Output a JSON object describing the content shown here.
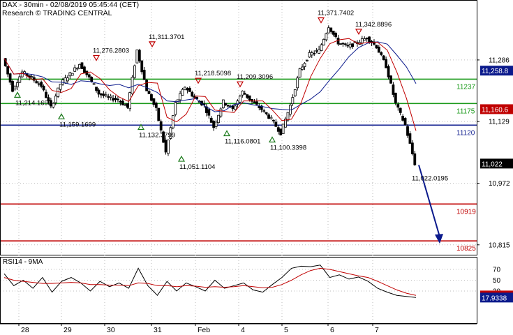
{
  "header": {
    "line1": "DAX - 30min - 02/08/2019 05:45:44 (CET)",
    "line2": "Research © TRADING CENTRAL"
  },
  "chart_data": [
    {
      "type": "candlestick",
      "title": "DAX - 30min - 02/08/2019 05:45:44 (CET)",
      "subtitle": "Research © TRADING CENTRAL",
      "ylim": [
        10800,
        11400
      ],
      "y_ticks": [
        {
          "value": 11286,
          "label": "11,286"
        },
        {
          "value": 11129,
          "label": "11,129"
        },
        {
          "value": 10972,
          "label": "10,972"
        },
        {
          "value": 10815,
          "label": "10,815"
        }
      ],
      "current_price": {
        "value": 11022,
        "label": "11,022"
      },
      "moving_average_labels": [
        {
          "value": 11258.8,
          "label": "11,258.8",
          "color": "#0b1a8c"
        },
        {
          "value": 11160.6,
          "label": "11,160.6",
          "color": "#c00000"
        }
      ],
      "levels": [
        {
          "value": 11237,
          "label": "11237",
          "color": "#1a9a1a"
        },
        {
          "value": 11175,
          "label": "11175",
          "color": "#1a9a1a"
        },
        {
          "value": 11120,
          "label": "11120",
          "color": "#0b1a8c"
        },
        {
          "value": 10919,
          "label": "10919",
          "color": "#c00000"
        },
        {
          "value": 10825,
          "label": "10825",
          "color": "#c00000"
        }
      ],
      "pivot_annotations": [
        {
          "label": "11,276.2803",
          "kind": "high",
          "value": 11276
        },
        {
          "label": "11,311.3701",
          "kind": "high",
          "value": 11311
        },
        {
          "label": "11,218.5098",
          "kind": "high",
          "value": 11218
        },
        {
          "label": "11,209.3096",
          "kind": "high",
          "value": 11209
        },
        {
          "label": "11,371.7402",
          "kind": "high",
          "value": 11372
        },
        {
          "label": "11,342.8896",
          "kind": "high",
          "value": 11343
        },
        {
          "label": "11,214.1699",
          "kind": "low",
          "value": 11214
        },
        {
          "label": "11,159.1699",
          "kind": "low",
          "value": 11159
        },
        {
          "label": "11,132.3799",
          "kind": "low",
          "value": 11132
        },
        {
          "label": "11,051.1104",
          "kind": "low",
          "value": 11051
        },
        {
          "label": "11,116.0801",
          "kind": "low",
          "value": 11116
        },
        {
          "label": "11,100.3398",
          "kind": "low",
          "value": 11100
        },
        {
          "label": "11,022.0195",
          "kind": "last",
          "value": 11022
        }
      ],
      "x_tick_labels": [
        "28",
        "29",
        "30",
        "31",
        "Feb",
        "4",
        "5",
        "6",
        "7"
      ],
      "price_path": [
        11290,
        11210,
        11255,
        11240,
        11220,
        11165,
        11225,
        11250,
        11276,
        11240,
        11200,
        11190,
        11185,
        11165,
        11311,
        11210,
        11160,
        11050,
        11175,
        11218,
        11190,
        11170,
        11115,
        11180,
        11160,
        11205,
        11180,
        11160,
        11135,
        11100,
        11170,
        11260,
        11300,
        11310,
        11372,
        11330,
        11320,
        11330,
        11343,
        11320,
        11270,
        11175,
        11120,
        11022
      ],
      "grid": true
    },
    {
      "type": "line",
      "title": "RSI14 - 9MA",
      "y_ticks": [
        {
          "value": 70,
          "label": "70"
        },
        {
          "value": 50,
          "label": "50"
        },
        {
          "value": 30,
          "label": "30"
        }
      ],
      "ylim": [
        15,
        85
      ],
      "series": [
        {
          "name": "RSI14",
          "color": "#000000",
          "values": [
            62,
            40,
            50,
            35,
            55,
            28,
            48,
            55,
            45,
            30,
            48,
            38,
            45,
            35,
            72,
            40,
            22,
            48,
            30,
            45,
            38,
            30,
            50,
            35,
            40,
            45,
            32,
            28,
            42,
            55,
            72,
            76,
            75,
            78,
            55,
            60,
            52,
            56,
            48,
            35,
            28,
            22,
            20,
            18
          ]
        },
        {
          "name": "9MA",
          "color": "#c00000",
          "values": [
            55,
            50,
            48,
            46,
            44,
            44,
            45,
            46,
            45,
            42,
            42,
            41,
            41,
            40,
            45,
            44,
            40,
            40,
            38,
            40,
            39,
            37,
            38,
            37,
            38,
            40,
            38,
            36,
            37,
            42,
            50,
            60,
            68,
            72,
            70,
            66,
            62,
            58,
            55,
            48,
            40,
            32,
            26,
            22
          ]
        }
      ],
      "value_labels": [
        {
          "value": 21.7547,
          "label": "21.7547",
          "color": "#c00000"
        },
        {
          "value": 17.9338,
          "label": "17.9338",
          "color": "#0b1a8c"
        }
      ],
      "grid": true
    }
  ]
}
